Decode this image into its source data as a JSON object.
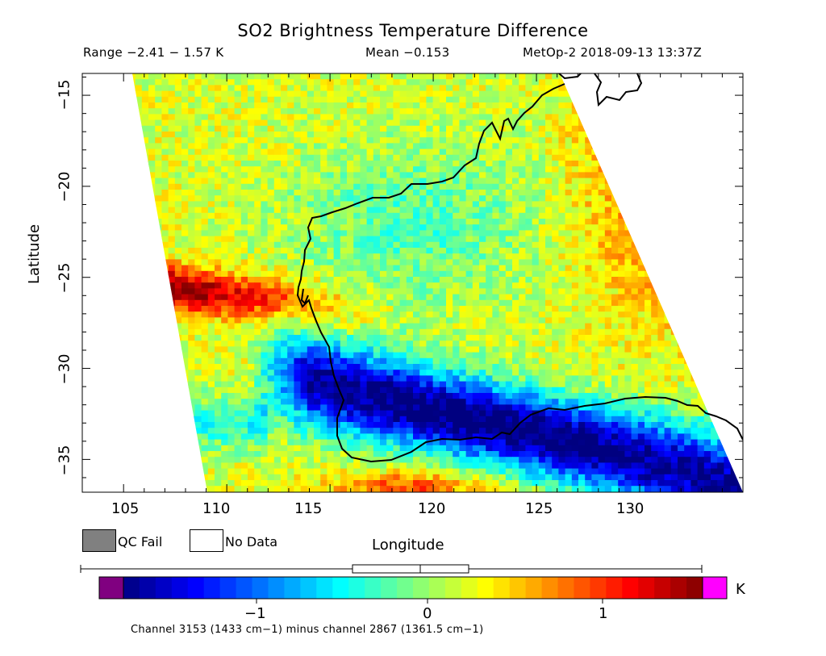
{
  "title": "SO2 Brightness Temperature Difference",
  "range_text": "Range −2.41 − 1.57 K",
  "mean_text": "Mean −0.153",
  "satellite_text": "MetOp-2 2018-09-13 13:37Z",
  "axes": {
    "xlabel": "Longitude",
    "ylabel": "Latitude",
    "xticks": [
      "105",
      "110",
      "115",
      "120",
      "125",
      "130"
    ],
    "yticks": [
      "−15",
      "−20",
      "−25",
      "−30",
      "−35"
    ]
  },
  "legend": {
    "qc_fail_label": "QC Fail",
    "qc_fail_color": "#808080",
    "no_data_label": "No Data",
    "no_data_color": "#ffffff"
  },
  "colorbar": {
    "unit": "K",
    "ticks": [
      "−1",
      "0",
      "1"
    ],
    "underflow_color": "#800080",
    "overflow_color": "#ff00ff",
    "colormap": "jet"
  },
  "footnote": "Channel 3153 (1433 cm−1) minus channel 2867 (1361.5 cm−1)",
  "map_data": {
    "lon_range": [
      103,
      135
    ],
    "lat_range": [
      -36.8,
      -13.8
    ],
    "value_range": [
      -1.75,
      1.55
    ],
    "features": [
      {
        "kind": "SO2-enhanced band",
        "lat_start": -24.8,
        "lat_end": -27.5,
        "lon_from": 107.5,
        "lon_to": 119,
        "peak": 1.5
      },
      {
        "kind": "negative band",
        "lat_start": -29,
        "lat_end": -35,
        "lon_from": 113,
        "lon_to": 133,
        "min": -1.7
      },
      {
        "kind": "positive swath edge",
        "side": "east",
        "lon_from": 125,
        "lon_to": 130
      }
    ]
  }
}
